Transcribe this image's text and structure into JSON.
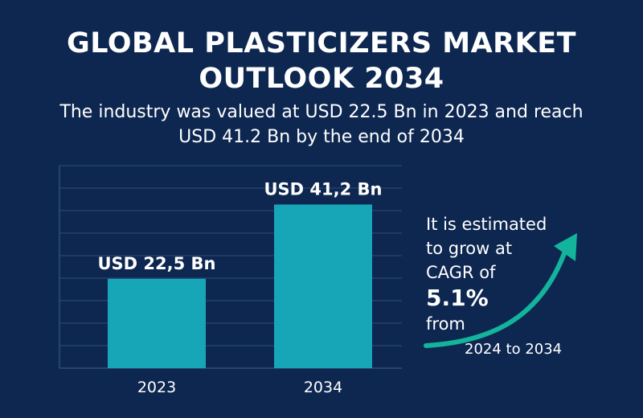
{
  "header": {
    "title_line1": "GLOBAL PLASTICIZERS MARKET",
    "title_line2": "OUTLOOK 2034",
    "subtitle_line1": "The industry was valued at USD 22.5 Bn in 2023 and reach",
    "subtitle_line2": "USD 41.2 Bn by the end of 2034"
  },
  "growth": {
    "line1": "It is estimated",
    "line2": "to grow at",
    "line3": "CAGR of",
    "cagr": "5.1%",
    "line4": "from",
    "period": "2024 to 2034"
  },
  "colors": {
    "background": "#0d2750",
    "bar": "#17a6b8",
    "arrow": "#14b39c",
    "grid": "#2f4d78"
  },
  "chart_data": {
    "type": "bar",
    "categories": [
      "2023",
      "2034"
    ],
    "values": [
      22.5,
      41.2
    ],
    "data_labels": [
      "USD 22,5 Bn",
      "USD 41,2 Bn"
    ],
    "ylim": [
      0,
      51
    ],
    "grid": true
  }
}
